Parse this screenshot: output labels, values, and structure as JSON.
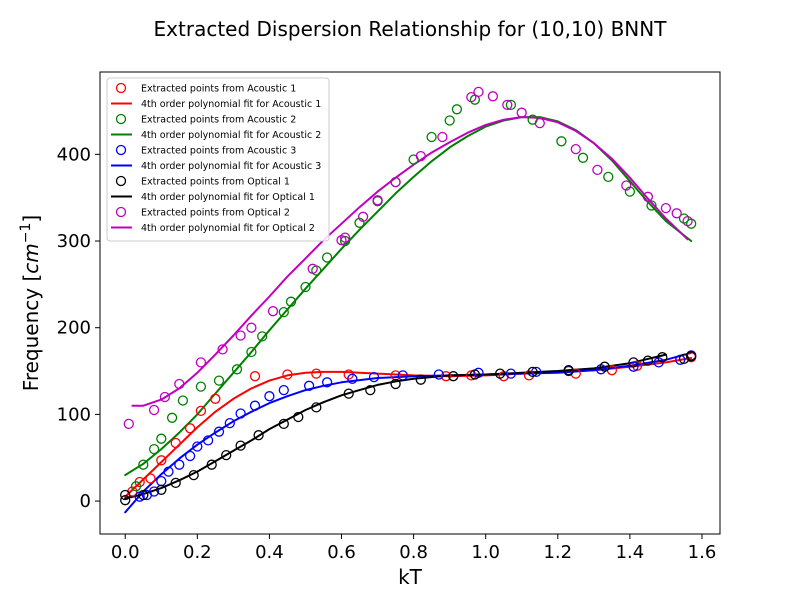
{
  "chart_data": {
    "type": "scatter",
    "title": "Extracted Dispersion Relationship for (10,10) BNNT",
    "xlabel": "kT",
    "ylabel": "Frequency [cm^-1]",
    "ylabel_parts": {
      "main": "Frequency [",
      "unit": "cm",
      "exp": "−1",
      "close": "]"
    },
    "xlim": [
      -0.07,
      1.65
    ],
    "ylim": [
      -38,
      495
    ],
    "xticks": [
      0.0,
      0.2,
      0.4,
      0.6,
      0.8,
      1.0,
      1.2,
      1.4,
      1.6
    ],
    "xtick_labels": [
      "0.0",
      "0.2",
      "0.4",
      "0.6",
      "0.8",
      "1.0",
      "1.2",
      "1.4",
      "1.6"
    ],
    "yticks": [
      0,
      100,
      200,
      300,
      400
    ],
    "ytick_labels": [
      "0",
      "100",
      "200",
      "300",
      "400"
    ],
    "grid": false,
    "legend_position": "top-left",
    "series": [
      {
        "name": "Extracted points from Acoustic 1",
        "kind": "points",
        "color": "#ff0000",
        "x": [
          0.02,
          0.04,
          0.07,
          0.1,
          0.14,
          0.18,
          0.21,
          0.25,
          0.36,
          0.45,
          0.53,
          0.62,
          0.75,
          0.89,
          0.96,
          1.05,
          1.12,
          1.25,
          1.35,
          1.42,
          1.57
        ],
        "y": [
          11,
          22,
          26,
          47,
          67,
          84,
          104,
          118,
          144,
          146,
          147,
          146,
          145,
          144,
          145,
          144,
          145,
          147,
          151,
          156,
          166
        ]
      },
      {
        "name": "4th order polynomial fit for Acoustic 1",
        "kind": "line",
        "color": "#ff0000",
        "x": [
          0.0,
          0.05,
          0.1,
          0.15,
          0.2,
          0.25,
          0.3,
          0.35,
          0.4,
          0.45,
          0.5,
          0.55,
          0.6,
          0.7,
          0.8,
          0.9,
          1.0,
          1.1,
          1.2,
          1.3,
          1.4,
          1.5,
          1.57
        ],
        "y": [
          5,
          25,
          45,
          65,
          85,
          103,
          118,
          130,
          139,
          145,
          148,
          149,
          149,
          147,
          145,
          144,
          145,
          147,
          149,
          151,
          155,
          160,
          165
        ]
      },
      {
        "name": "Extracted points from Acoustic 2",
        "kind": "points",
        "color": "#008000",
        "x": [
          0.03,
          0.05,
          0.08,
          0.1,
          0.13,
          0.16,
          0.21,
          0.26,
          0.31,
          0.35,
          0.38,
          0.44,
          0.46,
          0.5,
          0.53,
          0.56,
          0.61,
          0.65,
          0.7,
          0.75,
          0.8,
          0.85,
          0.9,
          0.92,
          0.97,
          1.07,
          1.13,
          1.21,
          1.27,
          1.34,
          1.4,
          1.46,
          1.55,
          1.57
        ],
        "y": [
          17,
          42,
          60,
          72,
          96,
          116,
          132,
          139,
          152,
          172,
          190,
          218,
          230,
          247,
          266,
          281,
          300,
          321,
          346,
          368,
          394,
          420,
          439,
          452,
          463,
          457,
          440,
          415,
          396,
          374,
          357,
          341,
          326,
          320
        ]
      },
      {
        "name": "4th order polynomial fit for Acoustic 2",
        "kind": "line",
        "color": "#008000",
        "x": [
          0.0,
          0.05,
          0.1,
          0.15,
          0.2,
          0.25,
          0.3,
          0.35,
          0.4,
          0.45,
          0.5,
          0.55,
          0.6,
          0.65,
          0.7,
          0.75,
          0.8,
          0.85,
          0.9,
          0.95,
          1.0,
          1.05,
          1.1,
          1.15,
          1.2,
          1.25,
          1.3,
          1.35,
          1.4,
          1.45,
          1.5,
          1.57
        ],
        "y": [
          30,
          43,
          60,
          79,
          100,
          124,
          148,
          172,
          197,
          221,
          245,
          268,
          291,
          313,
          334,
          355,
          374,
          392,
          408,
          421,
          432,
          439,
          443,
          443,
          438,
          428,
          413,
          393,
          369,
          345,
          323,
          300
        ]
      },
      {
        "name": "Extracted points from Acoustic 3",
        "kind": "points",
        "color": "#0000ff",
        "x": [
          0.04,
          0.06,
          0.08,
          0.1,
          0.12,
          0.15,
          0.18,
          0.2,
          0.23,
          0.26,
          0.29,
          0.32,
          0.36,
          0.4,
          0.44,
          0.51,
          0.56,
          0.63,
          0.69,
          0.77,
          0.87,
          0.98,
          1.07,
          1.14,
          1.23,
          1.32,
          1.41,
          1.48,
          1.54,
          1.57
        ],
        "y": [
          5,
          7,
          11,
          23,
          34,
          42,
          52,
          63,
          70,
          80,
          90,
          101,
          110,
          121,
          128,
          133,
          137,
          141,
          143,
          145,
          146,
          148,
          147,
          149,
          150,
          152,
          155,
          160,
          163,
          168
        ]
      },
      {
        "name": "4th order polynomial fit for Acoustic 3",
        "kind": "line",
        "color": "#0000ff",
        "x": [
          0.0,
          0.05,
          0.1,
          0.15,
          0.2,
          0.25,
          0.3,
          0.35,
          0.4,
          0.45,
          0.5,
          0.55,
          0.6,
          0.7,
          0.8,
          0.9,
          1.0,
          1.1,
          1.2,
          1.3,
          1.4,
          1.5,
          1.57
        ],
        "y": [
          -13,
          11,
          31,
          49,
          65,
          79,
          92,
          103,
          113,
          121,
          128,
          133,
          137,
          142,
          144,
          145,
          146,
          147,
          148,
          151,
          156,
          163,
          171
        ]
      },
      {
        "name": "Extracted points from Optical 1",
        "kind": "points",
        "color": "#000000",
        "x": [
          0.0,
          0.0,
          0.05,
          0.1,
          0.14,
          0.19,
          0.24,
          0.28,
          0.32,
          0.37,
          0.44,
          0.48,
          0.53,
          0.62,
          0.68,
          0.75,
          0.82,
          0.91,
          0.97,
          1.04,
          1.13,
          1.23,
          1.33,
          1.41,
          1.45,
          1.49,
          1.55,
          1.57
        ],
        "y": [
          1,
          7,
          7,
          13,
          21,
          30,
          42,
          53,
          64,
          76,
          89,
          97,
          108,
          124,
          128,
          135,
          140,
          144,
          146,
          147,
          149,
          151,
          155,
          160,
          162,
          166,
          164,
          167
        ]
      },
      {
        "name": "4th order polynomial fit for Optical 1",
        "kind": "line",
        "color": "#000000",
        "x": [
          0.0,
          0.05,
          0.1,
          0.15,
          0.2,
          0.25,
          0.3,
          0.35,
          0.4,
          0.45,
          0.5,
          0.55,
          0.6,
          0.65,
          0.7,
          0.75,
          0.8,
          0.9,
          1.0,
          1.1,
          1.2,
          1.3,
          1.4,
          1.5
        ],
        "y": [
          3,
          8,
          15,
          24,
          34,
          46,
          58,
          70,
          83,
          94,
          105,
          114,
          122,
          128,
          134,
          138,
          141,
          145,
          146,
          148,
          150,
          153,
          159,
          169
        ]
      },
      {
        "name": "Extracted points from Optical 2",
        "kind": "points",
        "color": "#bf00bf",
        "x": [
          0.01,
          0.08,
          0.11,
          0.15,
          0.21,
          0.27,
          0.32,
          0.35,
          0.41,
          0.52,
          0.6,
          0.61,
          0.66,
          0.7,
          0.75,
          0.82,
          0.88,
          0.96,
          0.98,
          1.02,
          1.06,
          1.1,
          1.15,
          1.25,
          1.31,
          1.39,
          1.45,
          1.5,
          1.53,
          1.56
        ],
        "y": [
          89,
          105,
          120,
          135,
          160,
          175,
          191,
          200,
          219,
          268,
          301,
          304,
          328,
          347,
          368,
          398,
          420,
          466,
          472,
          467,
          457,
          448,
          436,
          406,
          382,
          364,
          351,
          338,
          332,
          323
        ]
      },
      {
        "name": "4th order polynomial fit for Optical 2",
        "kind": "line",
        "color": "#bf00bf",
        "x": [
          0.02,
          0.05,
          0.1,
          0.15,
          0.2,
          0.25,
          0.3,
          0.35,
          0.4,
          0.45,
          0.5,
          0.55,
          0.6,
          0.65,
          0.7,
          0.75,
          0.8,
          0.85,
          0.9,
          0.95,
          1.0,
          1.05,
          1.1,
          1.15,
          1.2,
          1.25,
          1.3,
          1.35,
          1.4,
          1.45,
          1.5,
          1.56
        ],
        "y": [
          110,
          110,
          117,
          130,
          148,
          169,
          191,
          214,
          236,
          259,
          280,
          301,
          320,
          339,
          357,
          373,
          388,
          402,
          414,
          425,
          434,
          440,
          443,
          442,
          437,
          427,
          413,
          395,
          373,
          349,
          326,
          302
        ]
      }
    ]
  }
}
